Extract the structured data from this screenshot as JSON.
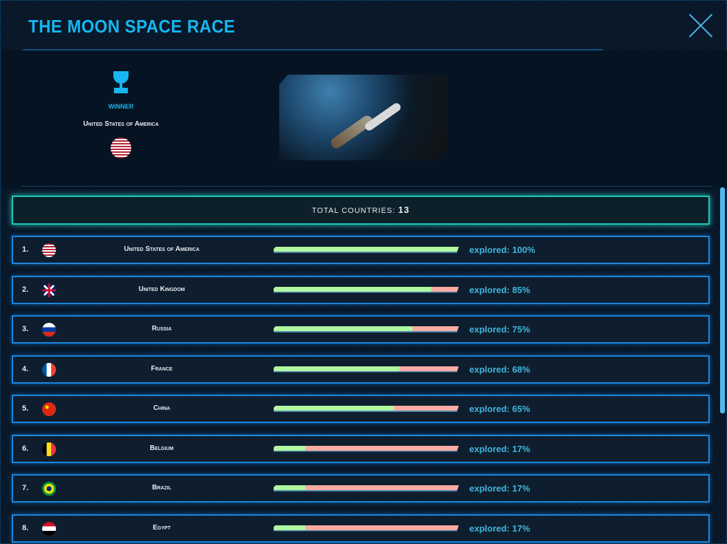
{
  "header": {
    "title": "THE MOON SPACE RACE",
    "close_icon": "close-x-icon"
  },
  "winner": {
    "icon": "trophy-icon",
    "label": "WINNER",
    "country": "United States of America",
    "flag": "us"
  },
  "hero": {
    "image": "earth-shuttle-image"
  },
  "total": {
    "label": "TOTAL COUNTRIES:",
    "value": "13"
  },
  "colors": {
    "accent": "#16b7f0",
    "explored": "#b1f9a1",
    "unexplored": "#fdaba3",
    "row_border": "#1a88e0",
    "total_border": "#1fc6b9"
  },
  "countries": [
    {
      "rank": "1.",
      "name": "United States of America",
      "flag": "us",
      "explored": 100,
      "label": "explored: 100%"
    },
    {
      "rank": "2.",
      "name": "United Kingdom",
      "flag": "gb",
      "explored": 85,
      "label": "explored: 85%"
    },
    {
      "rank": "3.",
      "name": "Russia",
      "flag": "ru",
      "explored": 75,
      "label": "explored: 75%"
    },
    {
      "rank": "4.",
      "name": "France",
      "flag": "fr",
      "explored": 68,
      "label": "explored: 68%"
    },
    {
      "rank": "5.",
      "name": "China",
      "flag": "cn",
      "explored": 65,
      "label": "explored: 65%"
    },
    {
      "rank": "6.",
      "name": "Belgium",
      "flag": "be",
      "explored": 17,
      "label": "explored: 17%"
    },
    {
      "rank": "7.",
      "name": "Brazil",
      "flag": "br",
      "explored": 17,
      "label": "explored: 17%"
    },
    {
      "rank": "8.",
      "name": "Egypt",
      "flag": "eg",
      "explored": 17,
      "label": "explored: 17%"
    }
  ]
}
